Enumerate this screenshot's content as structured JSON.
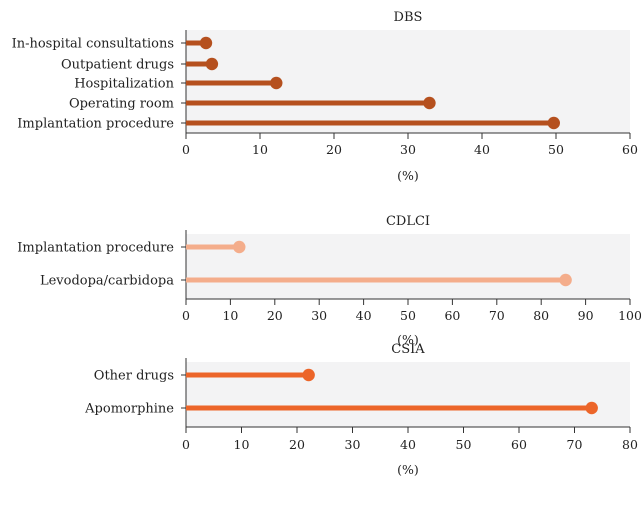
{
  "chart_data": [
    {
      "type": "lollipop",
      "title": "DBS",
      "xlabel": "(%)",
      "xlim": [
        0,
        60
      ],
      "xticks": [
        0,
        10,
        20,
        30,
        40,
        50,
        60
      ],
      "color": "#b5501e",
      "categories": [
        "In-hospital consultations",
        "Outpatient drugs",
        "Hospitalization",
        "Operating room",
        "Implantation procedure"
      ],
      "values": [
        2.7,
        3.5,
        12.2,
        32.9,
        49.7
      ],
      "grid": false
    },
    {
      "type": "lollipop",
      "title": "CDLCI",
      "xlabel": "(%)",
      "xlim": [
        0,
        100
      ],
      "xticks": [
        0,
        10,
        20,
        30,
        40,
        50,
        60,
        70,
        80,
        90,
        100
      ],
      "color": "#f4ad8b",
      "categories": [
        "Implantation procedure",
        "Levodopa/carbidopa"
      ],
      "values": [
        12.0,
        85.5
      ],
      "grid": false
    },
    {
      "type": "lollipop",
      "title": "CSIA",
      "xlabel": "(%)",
      "xlim": [
        0,
        80
      ],
      "xticks": [
        0,
        10,
        20,
        30,
        40,
        50,
        60,
        70,
        80
      ],
      "color": "#ec6529",
      "categories": [
        "Other drugs",
        "Apomorphine"
      ],
      "values": [
        22.1,
        73.1
      ],
      "grid": false
    }
  ]
}
